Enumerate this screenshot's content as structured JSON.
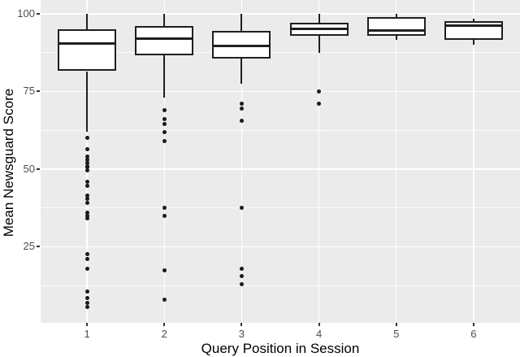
{
  "chart_data": {
    "type": "boxplot",
    "title": "",
    "xlabel": "Query Position in Session",
    "ylabel": "Mean Newsguard Score",
    "categories": [
      "1",
      "2",
      "3",
      "4",
      "5",
      "6"
    ],
    "ylim": [
      0.5,
      104.4
    ],
    "y_major_ticks": [
      25,
      50,
      75,
      100
    ],
    "y_minor_gridlines": [
      12.5,
      37.5,
      62.5,
      87.5
    ],
    "grid": "major and minor horizontal white lines, vertical major at each category",
    "legend_position": "none",
    "boxes": [
      {
        "category": "1",
        "whisker_low": 62,
        "q1": 81.5,
        "median": 90.5,
        "q3": 95,
        "whisker_high": 100,
        "outliers": [
          60,
          56.5,
          54,
          53,
          52,
          51,
          50.5,
          49.5,
          46,
          44.5,
          41.5,
          40.5,
          39,
          36,
          35,
          34,
          22.5,
          21,
          18,
          10.5,
          8.5,
          7,
          5.5
        ]
      },
      {
        "category": "2",
        "whisker_low": 73,
        "q1": 86.5,
        "median": 92,
        "q3": 96,
        "whisker_high": 100,
        "outliers": [
          69,
          66,
          64.5,
          62,
          59,
          37.5,
          35,
          17.5,
          8
        ]
      },
      {
        "category": "3",
        "whisker_low": 77.5,
        "q1": 85.5,
        "median": 89.5,
        "q3": 94.5,
        "whisker_high": 100,
        "outliers": [
          71,
          69.5,
          65.5,
          37.5,
          18,
          15.5,
          13
        ]
      },
      {
        "category": "4",
        "whisker_low": 87.5,
        "q1": 93,
        "median": 95,
        "q3": 97,
        "whisker_high": 100,
        "outliers": [
          75,
          71
        ]
      },
      {
        "category": "5",
        "whisker_low": 91.5,
        "q1": 93,
        "median": 94.5,
        "q3": 99,
        "whisker_high": 100,
        "outliers": []
      },
      {
        "category": "6",
        "whisker_low": 90,
        "q1": 91.5,
        "median": 96.2,
        "q3": 97.5,
        "whisker_high": 98.5,
        "outliers": []
      }
    ],
    "colors": {
      "panel_background": "#EBEBEB",
      "gridline": "#FFFFFF",
      "box_fill": "#FFFFFF",
      "box_border": "#1F1F1F",
      "outlier": "#1A1A1A",
      "tick_label": "#4D4D4D",
      "axis_title": "#000000"
    }
  }
}
